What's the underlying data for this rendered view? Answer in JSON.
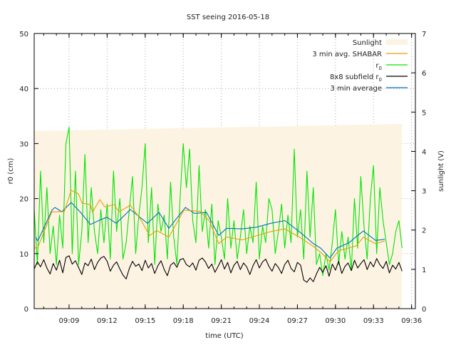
{
  "chart_data": {
    "type": "line",
    "title": "SST seeing 2016-05-18",
    "xlabel": "time (UTC)",
    "ylabel": "r0 (cm)",
    "y2label": "sunlight (V)",
    "xlim": [
      "09:06:15",
      "09:36:18"
    ],
    "ylim": [
      0,
      50
    ],
    "y2lim": [
      0,
      7
    ],
    "xticks": [
      "09:09",
      "09:12",
      "09:15",
      "09:18",
      "09:21",
      "09:24",
      "09:27",
      "09:30",
      "09:33",
      "09:36"
    ],
    "yticks": [
      0,
      10,
      20,
      30,
      40,
      50
    ],
    "y2ticks": [
      0,
      1,
      2,
      3,
      4,
      5,
      6,
      7
    ],
    "grid": true,
    "legend_position": "top-right",
    "legend": [
      {
        "label": "Sunlight",
        "color": "#fdf3e3",
        "style": "fill"
      },
      {
        "label": "3 min avg. SHABAR",
        "color": "#e69f00",
        "style": "line"
      },
      {
        "label": "r",
        "sub": "0",
        "color": "#00e600",
        "style": "line"
      },
      {
        "label": "8x8 subfield r",
        "sub": "0",
        "color": "#000000",
        "style": "line"
      },
      {
        "label": "3 min average",
        "color": "#0072bd",
        "style": "line"
      }
    ],
    "sunlight": {
      "axis": "y2",
      "x": [
        "09:06:15",
        "09:35:15"
      ],
      "values": [
        4.52,
        4.7
      ]
    },
    "r0_times": [
      "09:06:15",
      "09:06:30",
      "09:06:45",
      "09:07:00",
      "09:07:15",
      "09:07:30",
      "09:07:45",
      "09:08:00",
      "09:08:15",
      "09:08:30",
      "09:08:45",
      "09:09:00",
      "09:09:15",
      "09:09:30",
      "09:09:45",
      "09:10:00",
      "09:10:15",
      "09:10:30",
      "09:10:45",
      "09:11:00",
      "09:11:15",
      "09:11:30",
      "09:11:45",
      "09:12:00",
      "09:12:15",
      "09:12:30",
      "09:12:45",
      "09:13:00",
      "09:13:15",
      "09:13:30",
      "09:13:45",
      "09:14:00",
      "09:14:15",
      "09:14:30",
      "09:14:45",
      "09:15:00",
      "09:15:15",
      "09:15:30",
      "09:15:45",
      "09:16:00",
      "09:16:15",
      "09:16:30",
      "09:16:45",
      "09:17:00",
      "09:17:15",
      "09:17:30",
      "09:17:45",
      "09:18:00",
      "09:18:15",
      "09:18:30",
      "09:18:45",
      "09:19:00",
      "09:19:15",
      "09:19:30",
      "09:19:45",
      "09:20:00",
      "09:20:15",
      "09:20:30",
      "09:20:45",
      "09:21:00",
      "09:21:15",
      "09:21:30",
      "09:21:45",
      "09:22:00",
      "09:22:15",
      "09:22:30",
      "09:22:45",
      "09:23:00",
      "09:23:15",
      "09:23:30",
      "09:23:45",
      "09:24:00",
      "09:24:15",
      "09:24:30",
      "09:24:45",
      "09:25:00",
      "09:25:15",
      "09:25:30",
      "09:25:45",
      "09:26:00",
      "09:26:15",
      "09:26:30",
      "09:26:45",
      "09:27:00",
      "09:27:15",
      "09:27:30",
      "09:27:45",
      "09:28:00",
      "09:28:15",
      "09:28:30",
      "09:28:45",
      "09:29:00",
      "09:29:15",
      "09:29:30",
      "09:29:45",
      "09:30:00",
      "09:30:15",
      "09:30:30",
      "09:30:45",
      "09:31:00",
      "09:31:15",
      "09:31:30",
      "09:31:45",
      "09:32:00",
      "09:32:15",
      "09:32:30",
      "09:32:45",
      "09:33:00",
      "09:33:15",
      "09:33:30",
      "09:33:45",
      "09:34:00",
      "09:34:15",
      "09:34:30",
      "09:34:45",
      "09:35:00",
      "09:35:15"
    ],
    "series": [
      {
        "name": "Sunlight",
        "axis": "y2",
        "color": "#fdf3e3"
      },
      {
        "name": "r0",
        "color": "#00e600",
        "values": [
          18,
          8,
          25,
          12,
          22,
          10,
          15,
          8,
          17,
          11,
          30,
          33,
          10,
          25,
          8,
          14,
          28,
          12,
          22,
          14,
          10,
          18,
          12,
          19,
          9,
          25,
          14,
          20,
          9,
          12,
          18,
          24,
          10,
          17,
          22,
          30,
          12,
          22,
          8,
          19,
          14,
          17,
          9,
          23,
          13,
          8,
          20,
          30,
          22,
          29,
          16,
          12,
          26,
          14,
          18,
          11,
          19,
          8,
          16,
          13,
          9,
          20,
          11,
          16,
          9,
          13,
          18,
          10,
          15,
          12,
          23,
          9,
          15,
          12,
          20,
          18,
          10,
          14,
          19,
          11,
          17,
          12,
          29,
          13,
          18,
          9,
          25,
          13,
          22,
          8,
          10,
          6,
          10,
          7,
          12,
          18,
          8,
          14,
          9,
          13,
          7,
          20,
          11,
          24,
          15,
          9,
          20,
          26,
          10,
          22,
          16,
          12,
          8,
          10,
          14,
          16,
          11
        ]
      },
      {
        "name": "8x8 subfield r0",
        "color": "#000000",
        "values": [
          7.2,
          8.5,
          7.6,
          8.9,
          7.4,
          6.3,
          8.2,
          7.0,
          8.8,
          6.5,
          9.3,
          9.6,
          8.1,
          8.7,
          7.5,
          6.2,
          8.3,
          7.8,
          9.0,
          7.1,
          8.4,
          9.2,
          9.5,
          8.6,
          6.8,
          7.9,
          8.5,
          7.2,
          6.1,
          5.4,
          7.3,
          8.6,
          7.7,
          8.1,
          6.9,
          8.8,
          7.4,
          8.2,
          6.4,
          7.8,
          8.7,
          7.1,
          6.0,
          7.9,
          8.4,
          7.5,
          8.9,
          9.1,
          8.0,
          7.6,
          8.3,
          7.0,
          8.8,
          9.2,
          8.5,
          7.3,
          8.1,
          6.6,
          7.7,
          8.9,
          7.2,
          8.4,
          6.5,
          7.9,
          8.6,
          7.1,
          8.3,
          7.6,
          6.2,
          7.8,
          8.9,
          7.4,
          8.5,
          9.0,
          7.7,
          6.8,
          8.2,
          7.5,
          6.4,
          8.0,
          8.8,
          7.3,
          6.7,
          8.4,
          7.9,
          5.2,
          4.8,
          5.6,
          4.9,
          6.3,
          7.5,
          6.6,
          7.8,
          5.9,
          8.1,
          7.0,
          8.6,
          6.4,
          7.7,
          8.3,
          6.9,
          8.8,
          7.4,
          8.2,
          8.9,
          7.1,
          8.5,
          7.6,
          9.1,
          8.0,
          7.3,
          8.6,
          6.5,
          7.9,
          7.2,
          8.4,
          6.8
        ]
      },
      {
        "name": "3 min average",
        "color": "#0072bd",
        "x": [
          "09:06:22",
          "09:06:32",
          "09:06:55",
          "09:07:39",
          "09:07:53",
          "09:08:26",
          "09:09:10",
          "09:09:54",
          "09:10:41",
          "09:11:25",
          "09:11:59",
          "09:12:43",
          "09:13:50",
          "09:15:11",
          "09:16:05",
          "09:16:52",
          "09:18:10",
          "09:18:53",
          "09:19:50",
          "09:20:48",
          "09:21:25",
          "09:22:39",
          "09:23:47",
          "09:24:54",
          "09:26:01",
          "09:27:09",
          "09:28:16",
          "09:28:50",
          "09:29:34",
          "09:30:07",
          "09:31:05",
          "09:31:38",
          "09:32:12",
          "09:33:10",
          "09:33:53"
        ],
        "values": [
          13.0,
          12.3,
          14.2,
          17.9,
          18.4,
          17.6,
          19.3,
          17.5,
          15.3,
          16.1,
          16.6,
          15.5,
          18.0,
          15.5,
          17.5,
          14.6,
          18.4,
          17.3,
          17.5,
          13.3,
          14.6,
          14.5,
          14.8,
          15.5,
          16.0,
          14.0,
          11.8,
          11.0,
          9.2,
          11.0,
          12.0,
          13.1,
          14.1,
          12.4,
          12.6
        ]
      },
      {
        "name": "3 min avg. SHABAR",
        "color": "#e69f00",
        "x": [
          "09:06:15",
          "09:06:32",
          "09:07:39",
          "09:08:37",
          "09:09:10",
          "09:09:44",
          "09:10:01",
          "09:10:41",
          "09:10:51",
          "09:11:25",
          "09:11:49",
          "09:12:33",
          "09:12:56",
          "09:13:50",
          "09:14:37",
          "09:15:21",
          "09:15:54",
          "09:16:52",
          "09:18:03",
          "09:19:20",
          "09:20:04",
          "09:20:48",
          "09:21:25",
          "09:22:39",
          "09:24:54",
          "09:26:01",
          "09:27:09",
          "09:28:16",
          "09:28:57",
          "09:29:34",
          "09:30:14",
          "09:31:38",
          "09:32:12",
          "09:33:10",
          "09:33:53"
        ],
        "values": [
          11.0,
          11.1,
          17.6,
          17.6,
          21.5,
          20.9,
          19.2,
          18.9,
          17.5,
          19.8,
          18.5,
          18.9,
          17.6,
          18.8,
          16.3,
          13.3,
          14.2,
          13.0,
          17.9,
          17.7,
          15.9,
          11.8,
          13.0,
          12.5,
          14.0,
          14.5,
          13.0,
          11.3,
          10.0,
          8.5,
          10.5,
          11.4,
          13.0,
          11.8,
          12.3
        ]
      }
    ]
  }
}
